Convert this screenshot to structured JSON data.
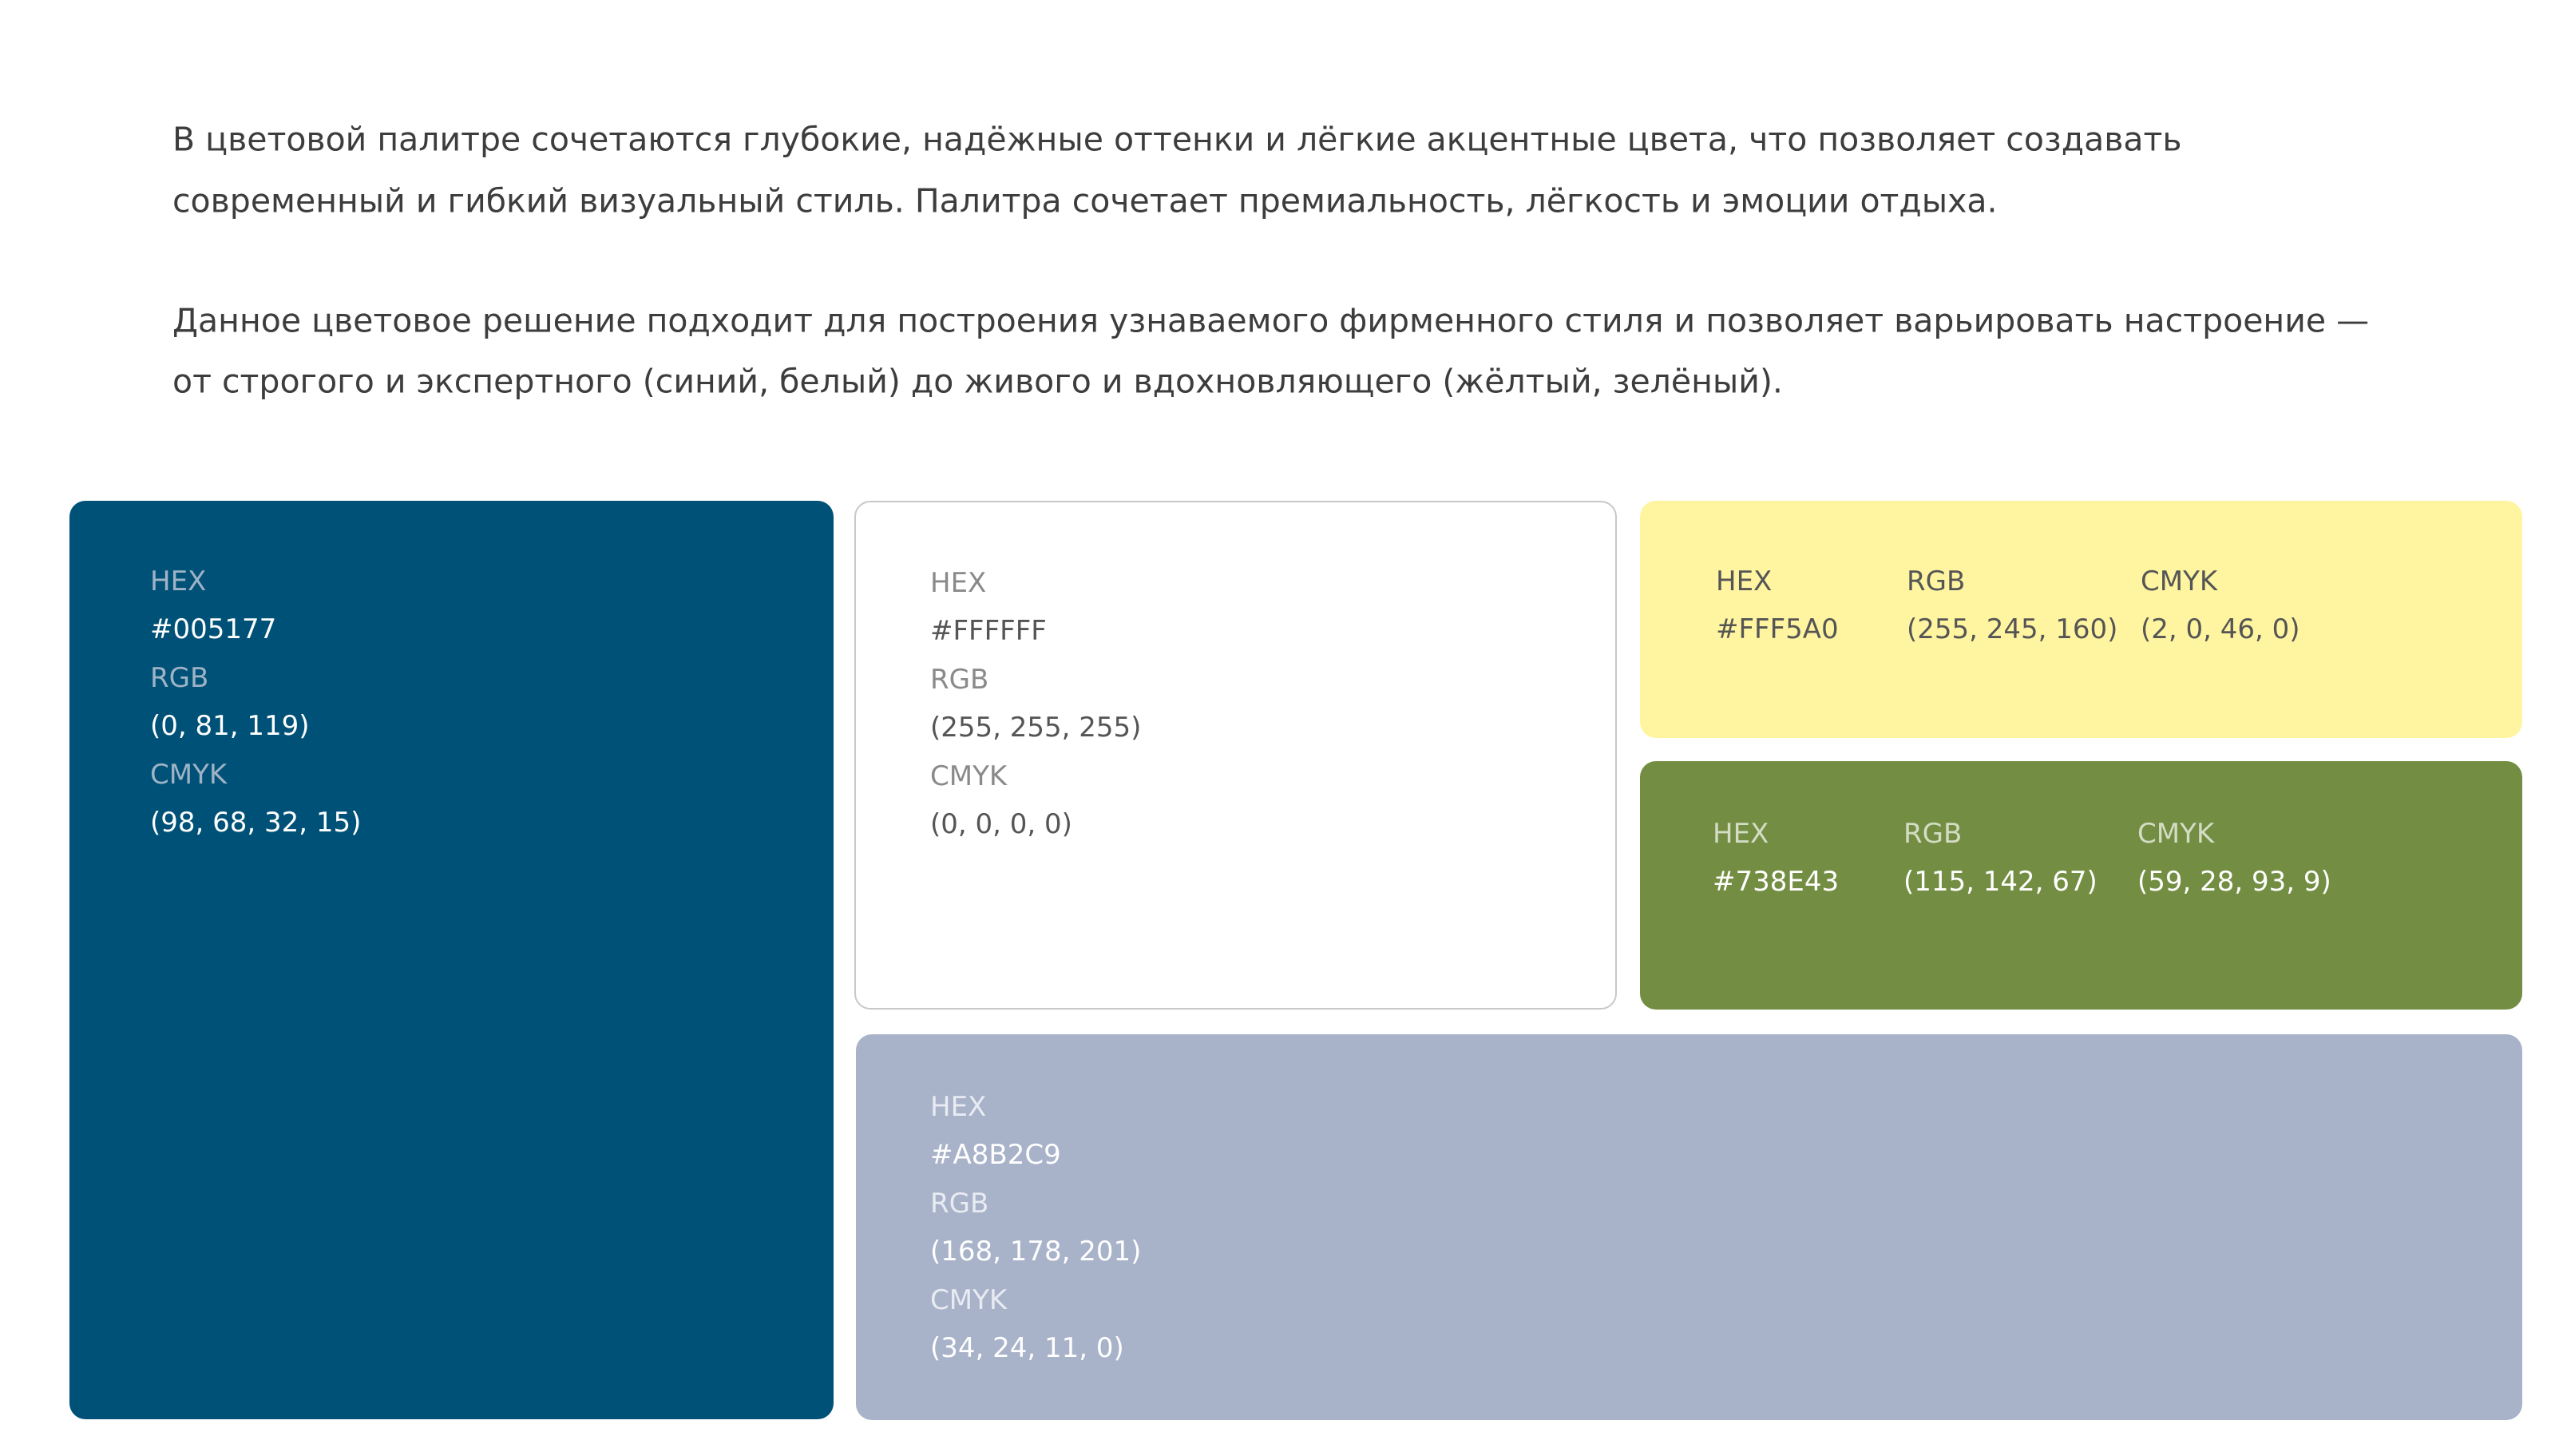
{
  "intro": {
    "paragraphs": [
      [
        "В цветовой палитре сочетаются глубокие, надёжные оттенки и лёгкие акцентные цвета, что позволяет создавать",
        "современный и гибкий визуальный стиль. Палитра сочетает премиальность, лёгкость и эмоции отдыха."
      ],
      [
        "Данное цветовое решение подходит для построения узнаваемого фирменного стиля и позволяет варьировать настроение —",
        "от строгого и экспертного (синий, белый) до живого и вдохновляющего (жёлтый, зелёный)."
      ]
    ]
  },
  "swatches": [
    {
      "fields": [
        {
          "label": "HEX",
          "value": "#005177"
        },
        {
          "label": "RGB",
          "value": "(0, 81, 119)"
        },
        {
          "label": "CMYK",
          "value": "(98, 68, 32, 15)"
        }
      ]
    },
    {
      "fields": [
        {
          "label": "HEX",
          "value": "#FFFFFF"
        },
        {
          "label": "RGB",
          "value": "(255, 255, 255)"
        },
        {
          "label": "CMYK",
          "value": "(0, 0, 0, 0)"
        }
      ]
    },
    {
      "fields": [
        {
          "label": "HEX",
          "value": "#FFF5A0"
        },
        {
          "label": "RGB",
          "value": "(255, 245, 160)"
        },
        {
          "label": "CMYK",
          "value": "(2, 0, 46, 0)"
        }
      ]
    },
    {
      "fields": [
        {
          "label": "HEX",
          "value": "#738E43"
        },
        {
          "label": "RGB",
          "value": "(115, 142, 67)"
        },
        {
          "label": "CMYK",
          "value": "(59, 28, 93, 9)"
        }
      ]
    },
    {
      "fields": [
        {
          "label": "HEX",
          "value": "#A8B2C9"
        },
        {
          "label": "RGB",
          "value": "(168, 178, 201)"
        },
        {
          "label": "CMYK",
          "value": "(34, 24, 11, 0)"
        }
      ]
    }
  ]
}
